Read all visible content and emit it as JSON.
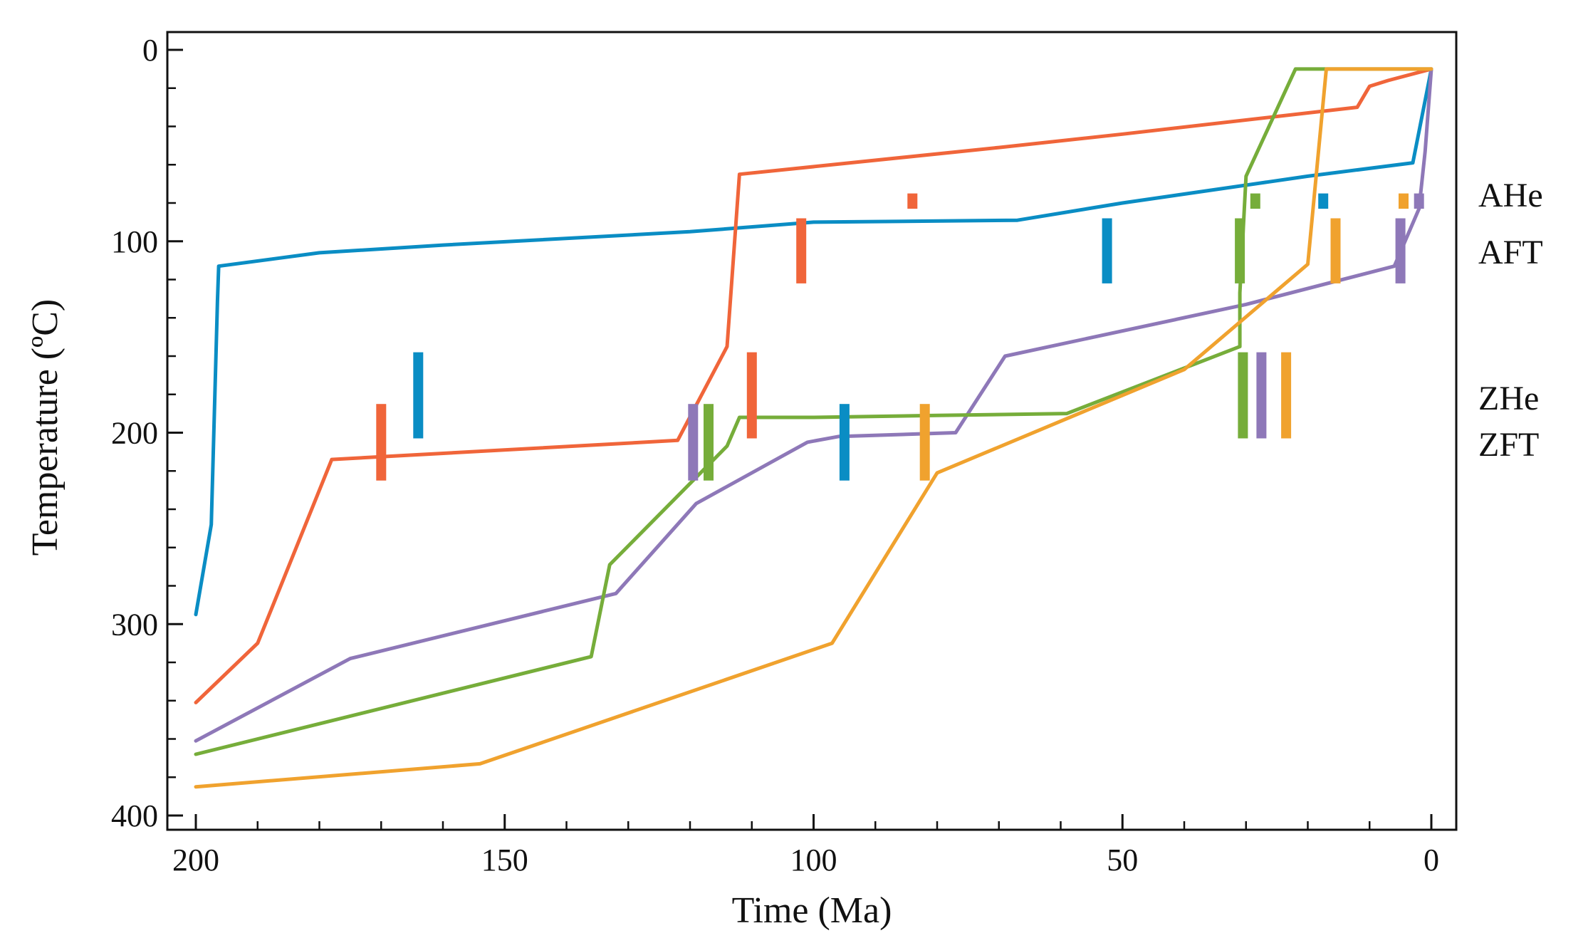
{
  "chart_data": {
    "type": "line",
    "title": "",
    "xlabel": "Time (Ma)",
    "ylabel": "Temperature (ºC)",
    "xlim": [
      200,
      0
    ],
    "ylim": [
      0,
      400
    ],
    "x_inverted": true,
    "y_inverted": true,
    "x_ticks": [
      "200",
      "150",
      "100",
      "50",
      "0"
    ],
    "y_ticks": [
      "0",
      "100",
      "200",
      "300",
      "400"
    ],
    "side_labels": [
      "AHe",
      "AFT",
      "ZHe",
      "ZFT"
    ],
    "series": [
      {
        "name": "blue",
        "color": "#0A8DC4",
        "points": [
          [
            200,
            295
          ],
          [
            197.5,
            248
          ],
          [
            196.5,
            131
          ],
          [
            196.3,
            113
          ],
          [
            180,
            106
          ],
          [
            160,
            102
          ],
          [
            120,
            95
          ],
          [
            100,
            90
          ],
          [
            67,
            89
          ],
          [
            50,
            80
          ],
          [
            20,
            66
          ],
          [
            3,
            59
          ],
          [
            0,
            10
          ]
        ]
      },
      {
        "name": "orange",
        "color": "#F0653A",
        "points": [
          [
            200,
            341
          ],
          [
            190,
            310
          ],
          [
            178,
            214
          ],
          [
            122,
            204
          ],
          [
            114,
            155
          ],
          [
            112,
            65
          ],
          [
            70,
            51
          ],
          [
            50,
            44
          ],
          [
            12,
            30
          ],
          [
            10,
            19
          ],
          [
            7,
            16
          ],
          [
            0,
            10
          ]
        ]
      },
      {
        "name": "purple",
        "color": "#8E78B8",
        "points": [
          [
            200,
            361
          ],
          [
            175,
            318
          ],
          [
            132,
            284
          ],
          [
            119,
            237
          ],
          [
            101,
            205
          ],
          [
            96,
            202
          ],
          [
            77,
            200
          ],
          [
            69,
            160
          ],
          [
            30,
            133
          ],
          [
            6,
            113
          ],
          [
            2,
            83
          ],
          [
            1,
            53
          ],
          [
            0,
            10
          ]
        ]
      },
      {
        "name": "green",
        "color": "#76AD3A",
        "points": [
          [
            200,
            368
          ],
          [
            136,
            317
          ],
          [
            133,
            269
          ],
          [
            114,
            207
          ],
          [
            112,
            192
          ],
          [
            100,
            192
          ],
          [
            80,
            191
          ],
          [
            59,
            190
          ],
          [
            31,
            155
          ],
          [
            31,
            127
          ],
          [
            30,
            66
          ],
          [
            22,
            10
          ],
          [
            0,
            10
          ]
        ]
      },
      {
        "name": "yellow",
        "color": "#F0A22E",
        "points": [
          [
            200,
            385
          ],
          [
            154,
            373
          ],
          [
            97,
            310
          ],
          [
            80,
            221
          ],
          [
            40,
            167
          ],
          [
            20,
            112
          ],
          [
            17,
            10
          ],
          [
            0,
            10
          ]
        ]
      }
    ],
    "marker_groups": [
      {
        "label": "AHe",
        "range": [
          75,
          83
        ],
        "markers": [
          {
            "x": 84,
            "color": "#F0653A"
          },
          {
            "x": 28.5,
            "color": "#76AD3A"
          },
          {
            "x": 17.5,
            "color": "#0A8DC4"
          },
          {
            "x": 4.5,
            "color": "#F0A22E"
          },
          {
            "x": 2,
            "color": "#8E78B8"
          }
        ]
      },
      {
        "label": "AFT",
        "range": [
          88,
          122
        ],
        "markers": [
          {
            "x": 102,
            "color": "#F0653A"
          },
          {
            "x": 52.5,
            "color": "#0A8DC4"
          },
          {
            "x": 31,
            "color": "#76AD3A"
          },
          {
            "x": 15.5,
            "color": "#F0A22E"
          },
          {
            "x": 5,
            "color": "#8E78B8"
          }
        ]
      },
      {
        "label": "ZHe",
        "range": [
          158,
          203
        ],
        "markers": [
          {
            "x": 164,
            "color": "#0A8DC4"
          },
          {
            "x": 110,
            "color": "#F0653A"
          },
          {
            "x": 30.5,
            "color": "#76AD3A"
          },
          {
            "x": 27.5,
            "color": "#8E78B8"
          },
          {
            "x": 23.5,
            "color": "#F0A22E"
          }
        ]
      },
      {
        "label": "ZFT",
        "range": [
          185,
          225
        ],
        "markers": [
          {
            "x": 170,
            "color": "#F0653A"
          },
          {
            "x": 119.5,
            "color": "#8E78B8"
          },
          {
            "x": 117,
            "color": "#76AD3A"
          },
          {
            "x": 95,
            "color": "#0A8DC4"
          },
          {
            "x": 82,
            "color": "#F0A22E"
          }
        ]
      }
    ]
  }
}
